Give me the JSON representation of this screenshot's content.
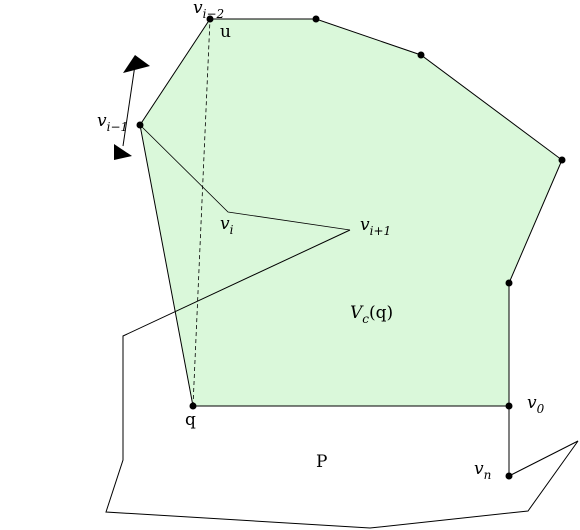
{
  "diagram": {
    "colors": {
      "region_fill": "#daf8da",
      "stroke": "#000000",
      "dot": "#000000"
    },
    "labels": {
      "v_im2": {
        "base": "v",
        "sub": "i−2"
      },
      "u": "u",
      "v_im1": {
        "base": "v",
        "sub": "i−1"
      },
      "v_i": {
        "base": "v",
        "sub": "i"
      },
      "v_ip1": {
        "base": "v",
        "sub": "i+1"
      },
      "region": {
        "a": "V",
        "sub": "c",
        "b": "(q)"
      },
      "q": "q",
      "v_0": {
        "base": "v",
        "sub": "0"
      },
      "v_n": {
        "base": "v",
        "sub": "n"
      },
      "P": "P"
    }
  }
}
